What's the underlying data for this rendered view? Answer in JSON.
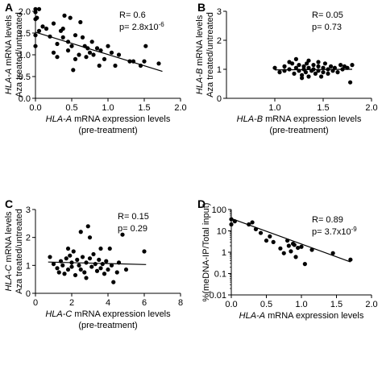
{
  "chart_data": [
    {
      "panel": "A",
      "type": "scatter",
      "xlabel_gene": "HLA-A",
      "xlabel_rest": " mRNA expression levels",
      "xlabel_line2": "(pre-treatment)",
      "ylabel_gene": "HLA-A",
      "ylabel_rest": " mRNA levels",
      "ylabel_line2": "Aza treated/untreated",
      "xlim": [
        0.0,
        2.0
      ],
      "ylim": [
        0.0,
        2.0
      ],
      "xticks": [
        "0.0",
        "0.5",
        "1.0",
        "1.5",
        "2.0"
      ],
      "yticks": [
        "0.0",
        "0.5",
        "1.0",
        "1.5",
        "2.0"
      ],
      "yscale": "linear",
      "stat_r": "R= 0.6",
      "stat_p_base": "p= 2.8x10",
      "stat_p_exp": "-6",
      "regression": {
        "x": [
          0.0,
          1.75
        ],
        "y": [
          1.52,
          0.62
        ]
      },
      "points": [
        [
          0.0,
          2.05
        ],
        [
          0.0,
          1.98
        ],
        [
          0.0,
          1.82
        ],
        [
          0.0,
          1.45
        ],
        [
          0.0,
          1.2
        ],
        [
          0.02,
          1.85
        ],
        [
          0.05,
          2.05
        ],
        [
          0.05,
          1.55
        ],
        [
          0.1,
          1.65
        ],
        [
          0.15,
          1.6
        ],
        [
          0.2,
          1.42
        ],
        [
          0.25,
          1.72
        ],
        [
          0.25,
          1.05
        ],
        [
          0.3,
          1.25
        ],
        [
          0.3,
          0.95
        ],
        [
          0.35,
          1.55
        ],
        [
          0.38,
          1.6
        ],
        [
          0.38,
          1.4
        ],
        [
          0.4,
          1.9
        ],
        [
          0.45,
          1.3
        ],
        [
          0.45,
          1.1
        ],
        [
          0.48,
          1.85
        ],
        [
          0.5,
          1.2
        ],
        [
          0.52,
          0.65
        ],
        [
          0.55,
          1.45
        ],
        [
          0.55,
          0.9
        ],
        [
          0.6,
          1.0
        ],
        [
          0.62,
          1.75
        ],
        [
          0.65,
          1.4
        ],
        [
          0.68,
          1.2
        ],
        [
          0.7,
          0.95
        ],
        [
          0.72,
          1.15
        ],
        [
          0.75,
          1.05
        ],
        [
          0.78,
          1.3
        ],
        [
          0.8,
          1.0
        ],
        [
          0.85,
          1.15
        ],
        [
          0.88,
          0.75
        ],
        [
          0.9,
          1.1
        ],
        [
          0.95,
          0.9
        ],
        [
          1.0,
          1.2
        ],
        [
          1.05,
          1.05
        ],
        [
          1.1,
          0.75
        ],
        [
          1.15,
          1.0
        ],
        [
          1.3,
          0.85
        ],
        [
          1.35,
          0.85
        ],
        [
          1.45,
          0.75
        ],
        [
          1.5,
          0.85
        ],
        [
          1.52,
          1.2
        ],
        [
          1.7,
          0.8
        ]
      ]
    },
    {
      "panel": "B",
      "type": "scatter",
      "xlabel_gene": "HLA-B",
      "xlabel_rest": " mRNA expression levels",
      "xlabel_line2": "(pre-treatment)",
      "ylabel_gene": "HLA-B",
      "ylabel_rest": " mRNA levels",
      "ylabel_line2": "Aza treated/untreated",
      "xlim": [
        0.5,
        2.0
      ],
      "ylim": [
        0,
        3
      ],
      "xticks": [
        "1.0",
        "1.5",
        "2.0"
      ],
      "yticks": [
        "0",
        "1",
        "2",
        "3"
      ],
      "yscale": "linear",
      "stat_r": "R= 0.05",
      "stat_p_base": "p= 0.73",
      "stat_p_exp": "",
      "regression": {
        "x": [
          1.0,
          1.8
        ],
        "y": [
          0.98,
          1.0
        ]
      },
      "points": [
        [
          1.0,
          1.05
        ],
        [
          1.05,
          0.9
        ],
        [
          1.1,
          1.1
        ],
        [
          1.1,
          0.95
        ],
        [
          1.15,
          1.0
        ],
        [
          1.18,
          1.2
        ],
        [
          1.2,
          0.85
        ],
        [
          1.22,
          1.05
        ],
        [
          1.25,
          1.15
        ],
        [
          1.25,
          0.95
        ],
        [
          1.28,
          0.8
        ],
        [
          1.3,
          1.1
        ],
        [
          1.3,
          1.0
        ],
        [
          1.32,
          0.9
        ],
        [
          1.33,
          1.2
        ],
        [
          1.35,
          1.05
        ],
        [
          1.35,
          0.75
        ],
        [
          1.38,
          0.95
        ],
        [
          1.4,
          1.15
        ],
        [
          1.4,
          1.0
        ],
        [
          1.42,
          0.85
        ],
        [
          1.45,
          1.1
        ],
        [
          1.45,
          0.95
        ],
        [
          1.48,
          0.75
        ],
        [
          1.5,
          1.05
        ],
        [
          1.5,
          0.9
        ],
        [
          1.52,
          1.2
        ],
        [
          1.55,
          1.0
        ],
        [
          1.55,
          0.85
        ],
        [
          1.58,
          1.1
        ],
        [
          1.6,
          0.95
        ],
        [
          1.62,
          1.05
        ],
        [
          1.65,
          0.9
        ],
        [
          1.68,
          1.15
        ],
        [
          1.7,
          1.0
        ],
        [
          1.72,
          1.1
        ],
        [
          1.75,
          1.05
        ],
        [
          1.78,
          0.55
        ],
        [
          1.8,
          1.15
        ],
        [
          1.22,
          1.35
        ],
        [
          1.35,
          1.3
        ],
        [
          1.15,
          1.25
        ],
        [
          1.45,
          1.25
        ],
        [
          1.28,
          0.7
        ]
      ]
    },
    {
      "panel": "C",
      "type": "scatter",
      "xlabel_gene": "HLA-C",
      "xlabel_rest": " mRNA expression levels",
      "xlabel_line2": "(pre-treatment)",
      "ylabel_gene": "HLA-C",
      "ylabel_rest": " mRNA levels",
      "ylabel_line2": "Aza treated/untreated",
      "xlim": [
        0,
        8
      ],
      "ylim": [
        0,
        3
      ],
      "xticks": [
        "0",
        "2",
        "4",
        "6",
        "8"
      ],
      "yticks": [
        "0",
        "1",
        "2",
        "3"
      ],
      "yscale": "linear",
      "stat_r": "R= 0.15",
      "stat_p_base": "p= 0.29",
      "stat_p_exp": "",
      "regression": {
        "x": [
          0.7,
          6.1
        ],
        "y": [
          1.12,
          1.03
        ]
      },
      "points": [
        [
          0.8,
          1.3
        ],
        [
          1.0,
          1.05
        ],
        [
          1.2,
          0.9
        ],
        [
          1.3,
          0.75
        ],
        [
          1.4,
          1.15
        ],
        [
          1.5,
          1.0
        ],
        [
          1.6,
          0.7
        ],
        [
          1.7,
          1.25
        ],
        [
          1.8,
          0.85
        ],
        [
          1.9,
          1.35
        ],
        [
          2.0,
          1.1
        ],
        [
          2.0,
          0.95
        ],
        [
          2.1,
          1.5
        ],
        [
          2.2,
          0.65
        ],
        [
          2.3,
          1.2
        ],
        [
          2.4,
          1.0
        ],
        [
          2.5,
          0.85
        ],
        [
          2.5,
          2.2
        ],
        [
          2.6,
          1.3
        ],
        [
          2.7,
          0.75
        ],
        [
          2.8,
          1.1
        ],
        [
          2.8,
          0.55
        ],
        [
          2.9,
          2.4
        ],
        [
          3.0,
          2.0
        ],
        [
          3.0,
          1.25
        ],
        [
          3.1,
          0.95
        ],
        [
          3.2,
          1.4
        ],
        [
          3.3,
          1.05
        ],
        [
          3.4,
          0.8
        ],
        [
          3.5,
          1.2
        ],
        [
          3.6,
          0.9
        ],
        [
          3.7,
          1.05
        ],
        [
          3.8,
          0.7
        ],
        [
          3.9,
          1.15
        ],
        [
          4.0,
          0.85
        ],
        [
          4.1,
          1.6
        ],
        [
          4.2,
          1.0
        ],
        [
          4.3,
          0.4
        ],
        [
          4.5,
          0.75
        ],
        [
          4.6,
          1.1
        ],
        [
          4.8,
          2.1
        ],
        [
          5.0,
          0.85
        ],
        [
          6.0,
          1.5
        ],
        [
          1.8,
          1.6
        ],
        [
          3.6,
          1.6
        ]
      ]
    },
    {
      "panel": "D",
      "type": "scatter",
      "xlabel_gene": "HLA-A",
      "xlabel_rest": " mRNA expression levels",
      "xlabel_line2": "",
      "ylabel_gene": "",
      "ylabel_rest": "%(meDNA-IP/Total input)",
      "ylabel_line2": "",
      "xlim": [
        0.0,
        2.0
      ],
      "ylim": [
        0.01,
        100
      ],
      "xticks": [
        "0.0",
        "0.5",
        "1.0",
        "1.5",
        "2.0"
      ],
      "yticks": [
        "0.01",
        "0.1",
        "1",
        "10",
        "100"
      ],
      "yscale": "log",
      "stat_r": "R= 0.89",
      "stat_p_base": "p= 3.7x10",
      "stat_p_exp": "-9",
      "regression": {
        "x": [
          0.0,
          1.7
        ],
        "y": [
          38,
          0.35
        ]
      },
      "points": [
        [
          0.0,
          35
        ],
        [
          0.0,
          20
        ],
        [
          0.05,
          28
        ],
        [
          0.25,
          20
        ],
        [
          0.3,
          25
        ],
        [
          0.35,
          12
        ],
        [
          0.42,
          8
        ],
        [
          0.5,
          3.5
        ],
        [
          0.55,
          5.5
        ],
        [
          0.6,
          3
        ],
        [
          0.7,
          1.5
        ],
        [
          0.75,
          0.9
        ],
        [
          0.8,
          3.5
        ],
        [
          0.82,
          2
        ],
        [
          0.85,
          1.1
        ],
        [
          0.88,
          2.5
        ],
        [
          0.9,
          2.2
        ],
        [
          0.92,
          0.6
        ],
        [
          0.95,
          1.6
        ],
        [
          1.0,
          1.8
        ],
        [
          1.05,
          0.28
        ],
        [
          1.15,
          1.3
        ],
        [
          1.45,
          0.9
        ],
        [
          1.7,
          0.45
        ]
      ]
    }
  ]
}
